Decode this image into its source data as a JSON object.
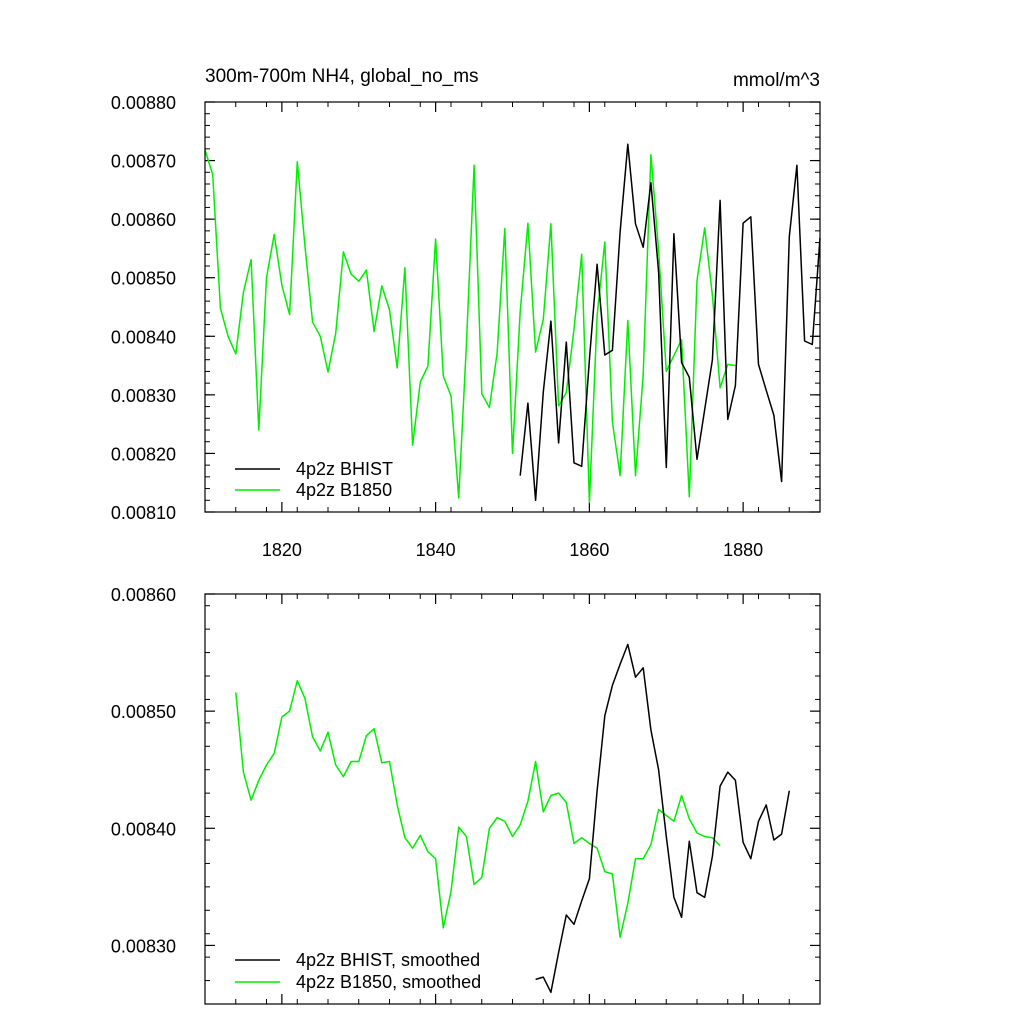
{
  "colors": {
    "bhist": "#000000",
    "b1850": "#00ee00",
    "axis": "#000000",
    "background": "#ffffff"
  },
  "chart_data": [
    {
      "type": "line",
      "title": "300m-700m NH4, global_no_ms",
      "units": "mmol/m^3",
      "xlim": [
        1810,
        1890
      ],
      "ylim": [
        0.0081,
        0.0088
      ],
      "x_ticks": [
        1820,
        1840,
        1860,
        1880
      ],
      "x_tick_labels": [
        "1820",
        "1840",
        "1860",
        "1880"
      ],
      "y_ticks": [
        0.0081,
        0.0082,
        0.0083,
        0.0084,
        0.0085,
        0.0086,
        0.0087,
        0.0088
      ],
      "y_tick_labels": [
        "0.00810",
        "0.00820",
        "0.00830",
        "0.00840",
        "0.00850",
        "0.00860",
        "0.00870",
        "0.00880"
      ],
      "legend": [
        "4p2z BHIST",
        "4p2z B1850"
      ],
      "legend_position": "bottom-left",
      "series": [
        {
          "name": "4p2z BHIST",
          "color": "#000000",
          "x_start": 1851,
          "values": [
            0.008162,
            0.008286,
            0.00812,
            0.008305,
            0.008426,
            0.008218,
            0.00839,
            0.008184,
            0.008178,
            0.00836,
            0.008523,
            0.008368,
            0.008376,
            0.008578,
            0.008728,
            0.008592,
            0.008552,
            0.008662,
            0.00851,
            0.008176,
            0.008575,
            0.008355,
            0.00833,
            0.00819,
            0.008275,
            0.00836,
            0.008632,
            0.008258,
            0.008316,
            0.008593,
            0.008604,
            0.008352,
            0.008308,
            0.008265,
            0.008152,
            0.00857,
            0.008692,
            0.008392,
            0.008386,
            0.008568
          ]
        },
        {
          "name": "4p2z B1850",
          "color": "#00ee00",
          "x_start": 1810,
          "values": [
            0.008718,
            0.008676,
            0.008448,
            0.0084,
            0.00837,
            0.008475,
            0.008531,
            0.00824,
            0.0085,
            0.008574,
            0.008487,
            0.008437,
            0.008698,
            0.008555,
            0.008424,
            0.0084,
            0.008339,
            0.008405,
            0.008544,
            0.008506,
            0.008494,
            0.008513,
            0.008408,
            0.008486,
            0.008445,
            0.008346,
            0.008517,
            0.008214,
            0.008322,
            0.008349,
            0.008566,
            0.008332,
            0.008298,
            0.008124,
            0.008386,
            0.008692,
            0.008302,
            0.008278,
            0.008371,
            0.008584,
            0.0082,
            0.008442,
            0.008593,
            0.008373,
            0.008429,
            0.008592,
            0.008281,
            0.008304,
            0.008412,
            0.00854,
            0.008116,
            0.008435,
            0.008561,
            0.008254,
            0.008162,
            0.008427,
            0.008162,
            0.008335,
            0.00871,
            0.008546,
            0.00834,
            0.008367,
            0.008394,
            0.008126,
            0.008495,
            0.008585,
            0.00847,
            0.008312,
            0.008352,
            0.00835
          ]
        }
      ]
    },
    {
      "type": "line",
      "xlim": [
        1810,
        1890
      ],
      "ylim": [
        0.00825,
        0.0086
      ],
      "x_ticks": [
        1820,
        1840,
        1860,
        1880
      ],
      "y_ticks": [
        0.0083,
        0.0084,
        0.0085,
        0.0086
      ],
      "y_tick_labels": [
        "0.00830",
        "0.00840",
        "0.00850",
        "0.00860"
      ],
      "legend": [
        "4p2z BHIST, smoothed",
        "4p2z B1850, smoothed"
      ],
      "legend_position": "bottom-left",
      "series": [
        {
          "name": "4p2z BHIST, smoothed",
          "color": "#000000",
          "x_start": 1853,
          "values": [
            0.008271,
            0.008273,
            0.00826,
            0.008294,
            0.008326,
            0.008318,
            0.008338,
            0.008357,
            0.008432,
            0.008496,
            0.008522,
            0.00854,
            0.008557,
            0.008529,
            0.008537,
            0.008484,
            0.00845,
            0.008393,
            0.008341,
            0.008324,
            0.008389,
            0.008345,
            0.008341,
            0.008376,
            0.008436,
            0.008448,
            0.008441,
            0.008388,
            0.008374,
            0.008406,
            0.00842,
            0.00839,
            0.008395,
            0.008432
          ]
        },
        {
          "name": "4p2z B1850, smoothed",
          "color": "#00ee00",
          "x_start": 1814,
          "values": [
            0.008516,
            0.008448,
            0.008424,
            0.008441,
            0.008454,
            0.008464,
            0.008495,
            0.0085,
            0.008526,
            0.008511,
            0.008478,
            0.008466,
            0.008482,
            0.008454,
            0.008444,
            0.008457,
            0.008457,
            0.008479,
            0.008485,
            0.008456,
            0.008457,
            0.00842,
            0.008392,
            0.008383,
            0.008394,
            0.00838,
            0.008374,
            0.008315,
            0.008346,
            0.008401,
            0.008393,
            0.008352,
            0.008358,
            0.0084,
            0.008409,
            0.008406,
            0.008393,
            0.008403,
            0.008423,
            0.008457,
            0.008414,
            0.008428,
            0.00843,
            0.008422,
            0.008387,
            0.008392,
            0.008387,
            0.008383,
            0.008363,
            0.008361,
            0.008307,
            0.008336,
            0.008374,
            0.008374,
            0.008386,
            0.008416,
            0.008411,
            0.008406,
            0.008428,
            0.008408,
            0.008396,
            0.008393,
            0.008392,
            0.008385
          ]
        }
      ]
    }
  ]
}
